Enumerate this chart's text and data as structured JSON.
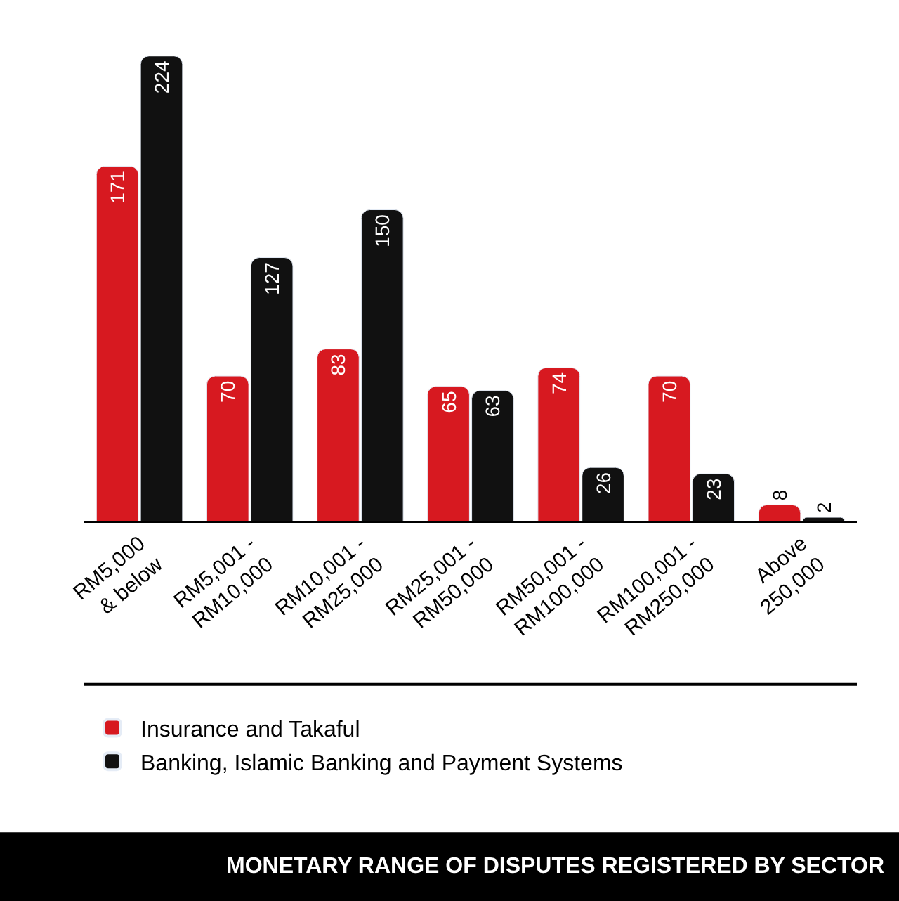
{
  "chart_data": {
    "type": "bar",
    "title": "MONETARY RANGE OF DISPUTES REGISTERED BY SECTOR",
    "categories": [
      "RM5,000\n& below",
      "RM5,001 -\nRM10,000",
      "RM10,001 -\nRM25,000",
      "RM25,001 -\nRM50,000",
      "RM50,001 -\nRM100,000",
      "RM100,001 -\nRM250,000",
      "Above\n250,000"
    ],
    "series": [
      {
        "name": "Insurance and Takaful",
        "color": "#d71920",
        "values": [
          171,
          70,
          83,
          65,
          74,
          70,
          8
        ]
      },
      {
        "name": "Banking, Islamic Banking and Payment Systems",
        "color": "#111111",
        "values": [
          224,
          127,
          150,
          63,
          26,
          23,
          2
        ]
      }
    ],
    "data_labels": true,
    "legend": "bottom"
  }
}
